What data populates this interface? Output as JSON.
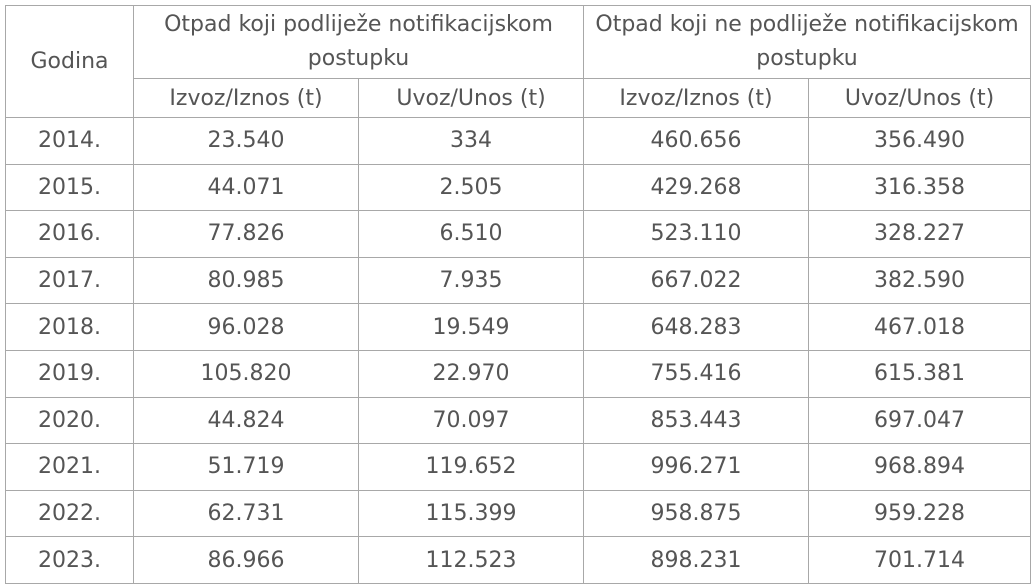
{
  "table": {
    "header": {
      "year_label": "Godina",
      "group_notified": "Otpad koji podliježe notifikacijskom postupku",
      "group_not_notified": "Otpad koji ne podliježe notifikacijskom postupku",
      "export_label": "Izvoz/Iznos (t)",
      "import_label": "Uvoz/Unos (t)"
    },
    "rows": [
      {
        "year": "2014.",
        "n_export": "23.540",
        "n_import": "334",
        "nn_export": "460.656",
        "nn_import": "356.490"
      },
      {
        "year": "2015.",
        "n_export": "44.071",
        "n_import": "2.505",
        "nn_export": "429.268",
        "nn_import": "316.358"
      },
      {
        "year": "2016.",
        "n_export": "77.826",
        "n_import": "6.510",
        "nn_export": "523.110",
        "nn_import": "328.227"
      },
      {
        "year": "2017.",
        "n_export": "80.985",
        "n_import": "7.935",
        "nn_export": "667.022",
        "nn_import": "382.590"
      },
      {
        "year": "2018.",
        "n_export": "96.028",
        "n_import": "19.549",
        "nn_export": "648.283",
        "nn_import": "467.018"
      },
      {
        "year": "2019.",
        "n_export": "105.820",
        "n_import": "22.970",
        "nn_export": "755.416",
        "nn_import": "615.381"
      },
      {
        "year": "2020.",
        "n_export": "44.824",
        "n_import": "70.097",
        "nn_export": "853.443",
        "nn_import": "697.047"
      },
      {
        "year": "2021.",
        "n_export": "51.719",
        "n_import": "119.652",
        "nn_export": "996.271",
        "nn_import": "968.894"
      },
      {
        "year": "2022.",
        "n_export": "62.731",
        "n_import": "115.399",
        "nn_export": "958.875",
        "nn_import": "959.228"
      },
      {
        "year": "2023.",
        "n_export": "86.966",
        "n_import": "112.523",
        "nn_export": "898.231",
        "nn_import": "701.714"
      }
    ]
  }
}
